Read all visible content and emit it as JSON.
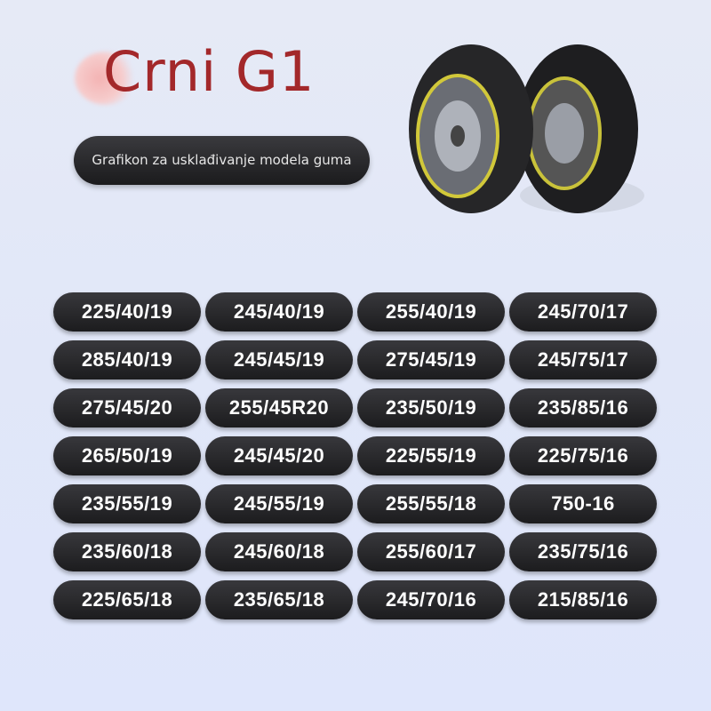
{
  "header": {
    "title": "Crni G1",
    "subtitle": "Grafikon za usklađivanje modela guma"
  },
  "product_image": {
    "icon": "tire-snow-chains-icon"
  },
  "sizes": [
    "225/40/19",
    "245/40/19",
    "255/40/19",
    "245/70/17",
    "285/40/19",
    "245/45/19",
    "275/45/19",
    "245/75/17",
    "275/45/20",
    "255/45R20",
    "235/50/19",
    "235/85/16",
    "265/50/19",
    "245/45/20",
    "225/55/19",
    "225/75/16",
    "235/55/19",
    "245/55/19",
    "255/55/18",
    "750-16",
    "235/60/18",
    "245/60/18",
    "255/60/17",
    "235/75/16",
    "225/65/18",
    "235/65/18",
    "245/70/16",
    "215/85/16"
  ],
  "colors": {
    "title": "#a3282a",
    "pill": "#1c1c1e",
    "background": "#e2e8f8"
  }
}
